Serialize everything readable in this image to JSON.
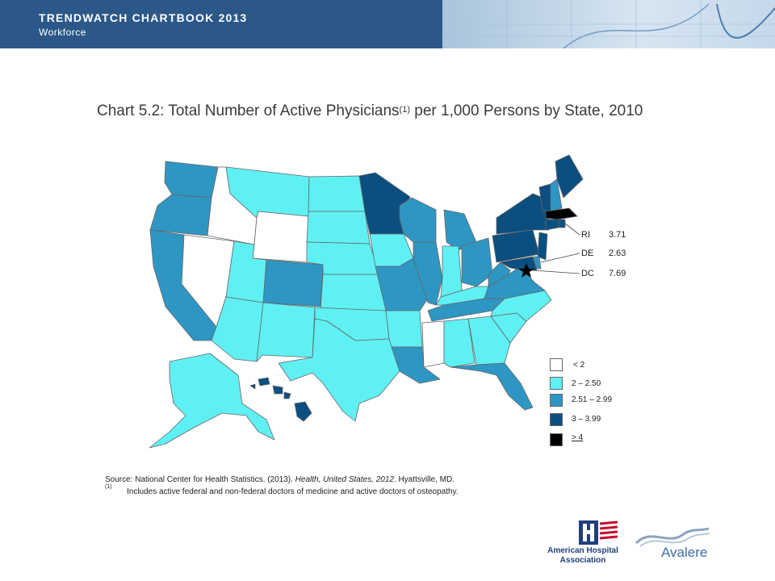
{
  "header": {
    "title": "TRENDWATCH CHARTBOOK 2013",
    "subtitle": "Workforce"
  },
  "chart": {
    "title_main": "Chart 5.2: Total Number of Active Physicians",
    "title_sup": "(1)",
    "title_rest": " per 1,000 Persons by State, 2010"
  },
  "colors": {
    "lt2": "#ffffff",
    "b2_250": "#5ff0f4",
    "b251_299": "#2e96c3",
    "b3_399": "#0b4f80",
    "ge4": "#000000"
  },
  "insets": [
    {
      "state": "RI",
      "value": "3.71"
    },
    {
      "state": "DE",
      "value": "2.63"
    },
    {
      "state": "DC",
      "value": "7.69"
    }
  ],
  "legend": [
    {
      "label": "< 2",
      "bin": "lt2"
    },
    {
      "label": "2 – 2.50",
      "bin": "b2_250"
    },
    {
      "label": "2.51 – 2.99",
      "bin": "b251_299"
    },
    {
      "label": "3 – 3.99",
      "bin": "b3_399"
    },
    {
      "label": "> 4",
      "bin": "ge4"
    }
  ],
  "source": {
    "prefix": "Source: National Center for Health Statistics. (2013). ",
    "italic": "Health, United States, 2012",
    "suffix": ". Hyattsville, MD.",
    "note_mark": "(1)",
    "note": "Includes active federal and non-federal doctors of medicine and active doctors of osteopathy."
  },
  "logos": {
    "aha_line1": "American Hospital",
    "aha_line2": "Association",
    "avalere": "Avalere"
  }
}
